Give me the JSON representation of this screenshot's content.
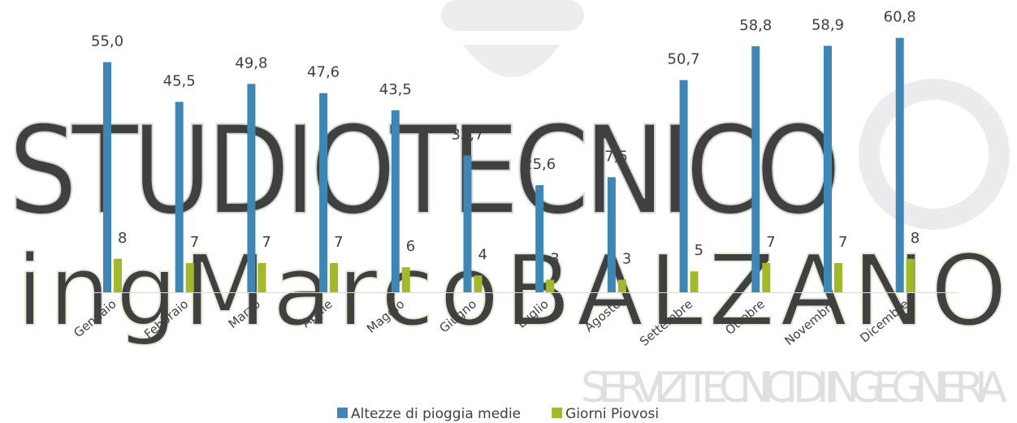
{
  "chart_data": {
    "type": "bar",
    "categories": [
      "Gennaio",
      "Febbraio",
      "Marzo",
      "Aprile",
      "Maggio",
      "Giugno",
      "Luglio",
      "Agosto",
      "Settembre",
      "Ottobre",
      "Novembre",
      "Dicembre"
    ],
    "series": [
      {
        "name": "Altezze di pioggia medie",
        "color": "#3e87b5",
        "values": [
          55.0,
          45.5,
          49.8,
          47.6,
          43.5,
          32.7,
          25.6,
          27.5,
          50.7,
          58.8,
          58.9,
          60.8
        ],
        "value_labels": [
          "55,0",
          "45,5",
          "49,8",
          "47,6",
          "43,5",
          "32,7",
          "25,6",
          "27,5",
          "50,7",
          "58,8",
          "58,9",
          "60,8"
        ]
      },
      {
        "name": "Giorni Piovosi",
        "color": "#a3b92a",
        "values": [
          8,
          7,
          7,
          7,
          6,
          4,
          3,
          3,
          5,
          7,
          7,
          8
        ]
      }
    ],
    "ylim": [
      0,
      65
    ],
    "legend": "bottom"
  },
  "watermark": {
    "line1": "STUDIOTECNICO",
    "line2": "ingMarcoBALZANO",
    "line3": "SERVIZI TECNICI DI INGEGNERIA"
  }
}
